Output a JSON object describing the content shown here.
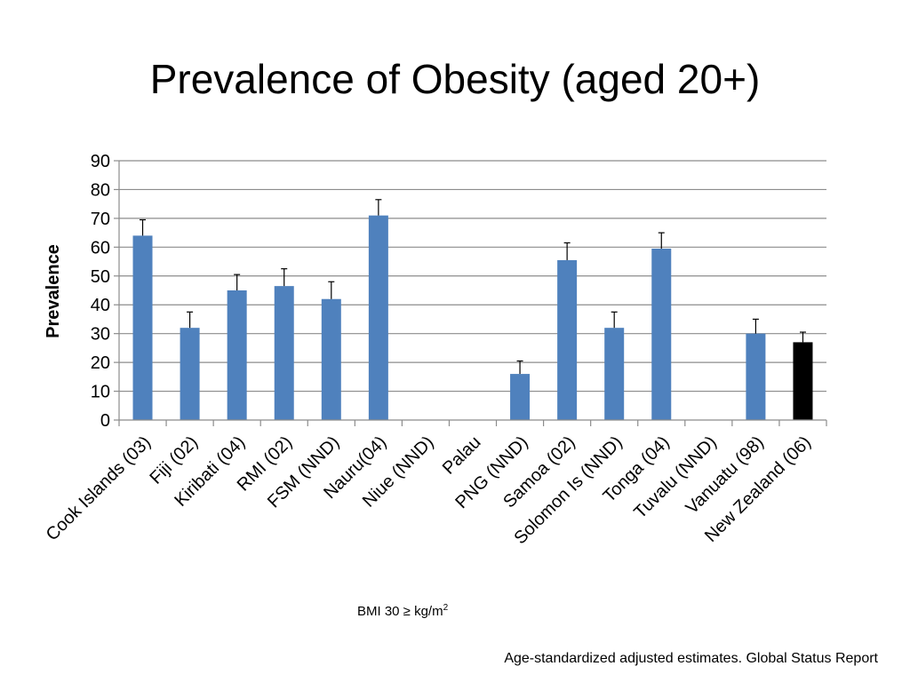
{
  "title": "Prevalence of Obesity (aged 20+)",
  "note": {
    "text": "BMI 30 ≥ kg/m",
    "sup": "2"
  },
  "source": "Age-standardized adjusted estimates. Global Status Report",
  "chart_data": {
    "type": "bar",
    "ylabel": "Prevalence",
    "xlabel": "",
    "ylim": [
      0,
      90
    ],
    "yticks": [
      0,
      10,
      20,
      30,
      40,
      50,
      60,
      70,
      80,
      90
    ],
    "grid": true,
    "categories": [
      "Cook Islands (03)",
      "Fiji (02)",
      "Kiribati (04)",
      "RMI (02)",
      "FSM (NND)",
      "Nauru(04)",
      "Niue (NND)",
      "Palau",
      "PNG (NND)",
      "Samoa (02)",
      "Solomon Is (NND)",
      "Tonga (04)",
      "Tuvalu (NND)",
      "Vanuatu (98)",
      "New Zealand (06)"
    ],
    "values": [
      64,
      32,
      45,
      46.5,
      42,
      71,
      null,
      null,
      16,
      55.5,
      32,
      59.5,
      null,
      30,
      27
    ],
    "error_upper": [
      69.5,
      37.5,
      50.5,
      52.5,
      48,
      76.5,
      null,
      null,
      20.5,
      61.5,
      37.5,
      65,
      null,
      35,
      30.5
    ],
    "colors": {
      "default": "#4f81bd",
      "highlight": "#000000"
    },
    "highlight_index": 14
  }
}
